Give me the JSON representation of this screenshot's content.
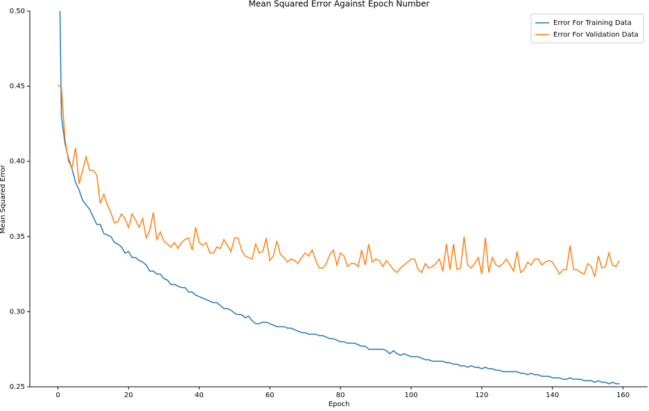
{
  "chart_data": {
    "type": "line",
    "title": "Mean Squared Error Against Epoch Number",
    "x_label": "Epoch",
    "y_label": "Mean Squared Error",
    "x": [
      0,
      1,
      2,
      3,
      4,
      5,
      6,
      7,
      8,
      9,
      10,
      11,
      12,
      13,
      14,
      15,
      16,
      17,
      18,
      19,
      20,
      21,
      22,
      23,
      24,
      25,
      26,
      27,
      28,
      29,
      30,
      31,
      32,
      33,
      34,
      35,
      36,
      37,
      38,
      39,
      40,
      41,
      42,
      43,
      44,
      45,
      46,
      47,
      48,
      49,
      50,
      51,
      52,
      53,
      54,
      55,
      56,
      57,
      58,
      59,
      60,
      61,
      62,
      63,
      64,
      65,
      66,
      67,
      68,
      69,
      70,
      71,
      72,
      73,
      74,
      75,
      76,
      77,
      78,
      79,
      80,
      81,
      82,
      83,
      84,
      85,
      86,
      87,
      88,
      89,
      90,
      91,
      92,
      93,
      94,
      95,
      96,
      97,
      98,
      99,
      100,
      101,
      102,
      103,
      104,
      105,
      106,
      107,
      108,
      109,
      110,
      111,
      112,
      113,
      114,
      115,
      116,
      117,
      118,
      119,
      120,
      121,
      122,
      123,
      124,
      125,
      126,
      127,
      128,
      129,
      130,
      131,
      132,
      133,
      134,
      135,
      136,
      137,
      138,
      139,
      140,
      141,
      142,
      143,
      144,
      145,
      146,
      147,
      148,
      149,
      150,
      151,
      152,
      153,
      154,
      155,
      156,
      157,
      158,
      159
    ],
    "series": [
      {
        "name": "Error For Training Data",
        "color": "#1f77b4",
        "values": [
          0.6,
          0.43,
          0.412,
          0.402,
          0.395,
          0.386,
          0.381,
          0.374,
          0.371,
          0.368,
          0.363,
          0.358,
          0.358,
          0.352,
          0.351,
          0.35,
          0.346,
          0.345,
          0.343,
          0.339,
          0.34,
          0.336,
          0.336,
          0.334,
          0.333,
          0.331,
          0.327,
          0.327,
          0.325,
          0.325,
          0.322,
          0.321,
          0.318,
          0.318,
          0.317,
          0.316,
          0.316,
          0.313,
          0.313,
          0.311,
          0.31,
          0.309,
          0.308,
          0.307,
          0.306,
          0.306,
          0.304,
          0.302,
          0.302,
          0.301,
          0.299,
          0.298,
          0.298,
          0.296,
          0.297,
          0.294,
          0.292,
          0.292,
          0.293,
          0.293,
          0.292,
          0.291,
          0.29,
          0.29,
          0.29,
          0.289,
          0.289,
          0.288,
          0.287,
          0.286,
          0.286,
          0.285,
          0.285,
          0.285,
          0.284,
          0.284,
          0.283,
          0.282,
          0.282,
          0.281,
          0.28,
          0.28,
          0.279,
          0.279,
          0.279,
          0.278,
          0.277,
          0.277,
          0.275,
          0.275,
          0.275,
          0.275,
          0.275,
          0.274,
          0.272,
          0.274,
          0.272,
          0.271,
          0.272,
          0.271,
          0.27,
          0.27,
          0.27,
          0.269,
          0.268,
          0.268,
          0.267,
          0.267,
          0.267,
          0.267,
          0.266,
          0.266,
          0.265,
          0.265,
          0.264,
          0.264,
          0.263,
          0.264,
          0.263,
          0.263,
          0.262,
          0.263,
          0.262,
          0.262,
          0.261,
          0.261,
          0.26,
          0.26,
          0.26,
          0.26,
          0.26,
          0.259,
          0.259,
          0.258,
          0.259,
          0.258,
          0.258,
          0.257,
          0.257,
          0.257,
          0.256,
          0.256,
          0.256,
          0.255,
          0.255,
          0.256,
          0.255,
          0.255,
          0.255,
          0.254,
          0.254,
          0.254,
          0.253,
          0.254,
          0.253,
          0.253,
          0.252,
          0.253,
          0.252,
          0.252
        ]
      },
      {
        "name": "Error For Validation Data",
        "color": "#ff7f0e",
        "values": [
          0.451,
          0.449,
          0.415,
          0.4,
          0.396,
          0.409,
          0.385,
          0.394,
          0.403,
          0.394,
          0.394,
          0.391,
          0.372,
          0.378,
          0.371,
          0.366,
          0.359,
          0.36,
          0.365,
          0.362,
          0.356,
          0.365,
          0.361,
          0.356,
          0.362,
          0.349,
          0.354,
          0.366,
          0.348,
          0.353,
          0.347,
          0.345,
          0.343,
          0.346,
          0.342,
          0.346,
          0.348,
          0.349,
          0.341,
          0.356,
          0.346,
          0.344,
          0.346,
          0.339,
          0.339,
          0.343,
          0.342,
          0.348,
          0.344,
          0.34,
          0.349,
          0.349,
          0.341,
          0.337,
          0.336,
          0.335,
          0.345,
          0.339,
          0.34,
          0.349,
          0.334,
          0.337,
          0.347,
          0.338,
          0.336,
          0.333,
          0.335,
          0.334,
          0.332,
          0.336,
          0.339,
          0.337,
          0.341,
          0.334,
          0.329,
          0.329,
          0.332,
          0.338,
          0.341,
          0.331,
          0.339,
          0.337,
          0.33,
          0.332,
          0.332,
          0.33,
          0.341,
          0.331,
          0.345,
          0.333,
          0.335,
          0.334,
          0.33,
          0.334,
          0.331,
          0.328,
          0.326,
          0.329,
          0.331,
          0.333,
          0.335,
          0.335,
          0.328,
          0.326,
          0.332,
          0.329,
          0.33,
          0.332,
          0.335,
          0.327,
          0.345,
          0.328,
          0.345,
          0.328,
          0.329,
          0.35,
          0.331,
          0.329,
          0.332,
          0.336,
          0.325,
          0.349,
          0.326,
          0.336,
          0.331,
          0.33,
          0.332,
          0.335,
          0.331,
          0.327,
          0.34,
          0.326,
          0.328,
          0.333,
          0.331,
          0.335,
          0.335,
          0.331,
          0.333,
          0.334,
          0.333,
          0.329,
          0.325,
          0.328,
          0.328,
          0.344,
          0.328,
          0.328,
          0.326,
          0.325,
          0.332,
          0.33,
          0.323,
          0.337,
          0.329,
          0.33,
          0.339,
          0.331,
          0.33,
          0.334
        ]
      }
    ],
    "xlim": [
      -7.95,
      166.95
    ],
    "xticks": [
      0,
      20,
      40,
      60,
      80,
      100,
      120,
      140,
      160
    ],
    "ylim": [
      0.25,
      0.5
    ],
    "yticks": [
      0.25,
      {
        "value": 0.3,
        "label": "0.30"
      },
      0.35,
      {
        "value": 0.4,
        "label": "0.40"
      },
      0.45,
      {
        "value": 0.5,
        "label": "0.50"
      }
    ],
    "legend": "upper right"
  }
}
